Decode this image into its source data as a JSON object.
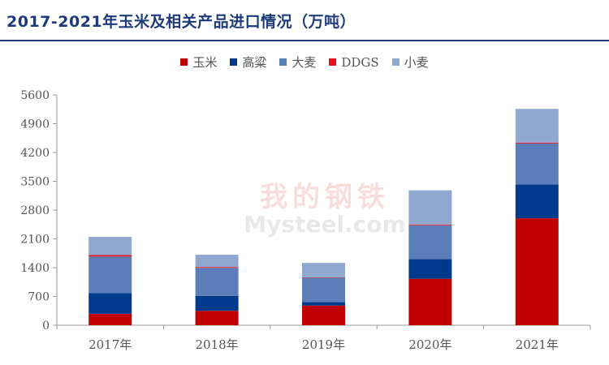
{
  "title": "2017-2021年玉米及相关产品进口情况（万吨）",
  "watermark": {
    "cn": "我的钢铁",
    "en": "Mysteel.com"
  },
  "colors": {
    "玉米": "#c00000",
    "高粱": "#003a8c",
    "大麦": "#5b7db8",
    "DDGS": "#e8101d",
    "小麦": "#8fa8cf"
  },
  "chart_data": {
    "type": "bar",
    "stacked": true,
    "title": "2017-2021年玉米及相关产品进口情况（万吨）",
    "categories": [
      "2017年",
      "2018年",
      "2019年",
      "2020年",
      "2021年"
    ],
    "ylim": [
      0,
      5600
    ],
    "yticks": [
      0,
      700,
      1400,
      2100,
      2800,
      3500,
      4200,
      4900,
      5600
    ],
    "legend_position": "top-center",
    "grid": false,
    "series": [
      {
        "name": "玉米",
        "values": [
          280,
          350,
          480,
          1130,
          2600
        ]
      },
      {
        "name": "高粱",
        "values": [
          500,
          365,
          85,
          480,
          820
        ]
      },
      {
        "name": "大麦",
        "values": [
          890,
          680,
          590,
          820,
          1000
        ]
      },
      {
        "name": "DDGS",
        "values": [
          40,
          20,
          10,
          20,
          20
        ]
      },
      {
        "name": "小麦",
        "values": [
          440,
          300,
          350,
          830,
          820
        ]
      }
    ]
  }
}
